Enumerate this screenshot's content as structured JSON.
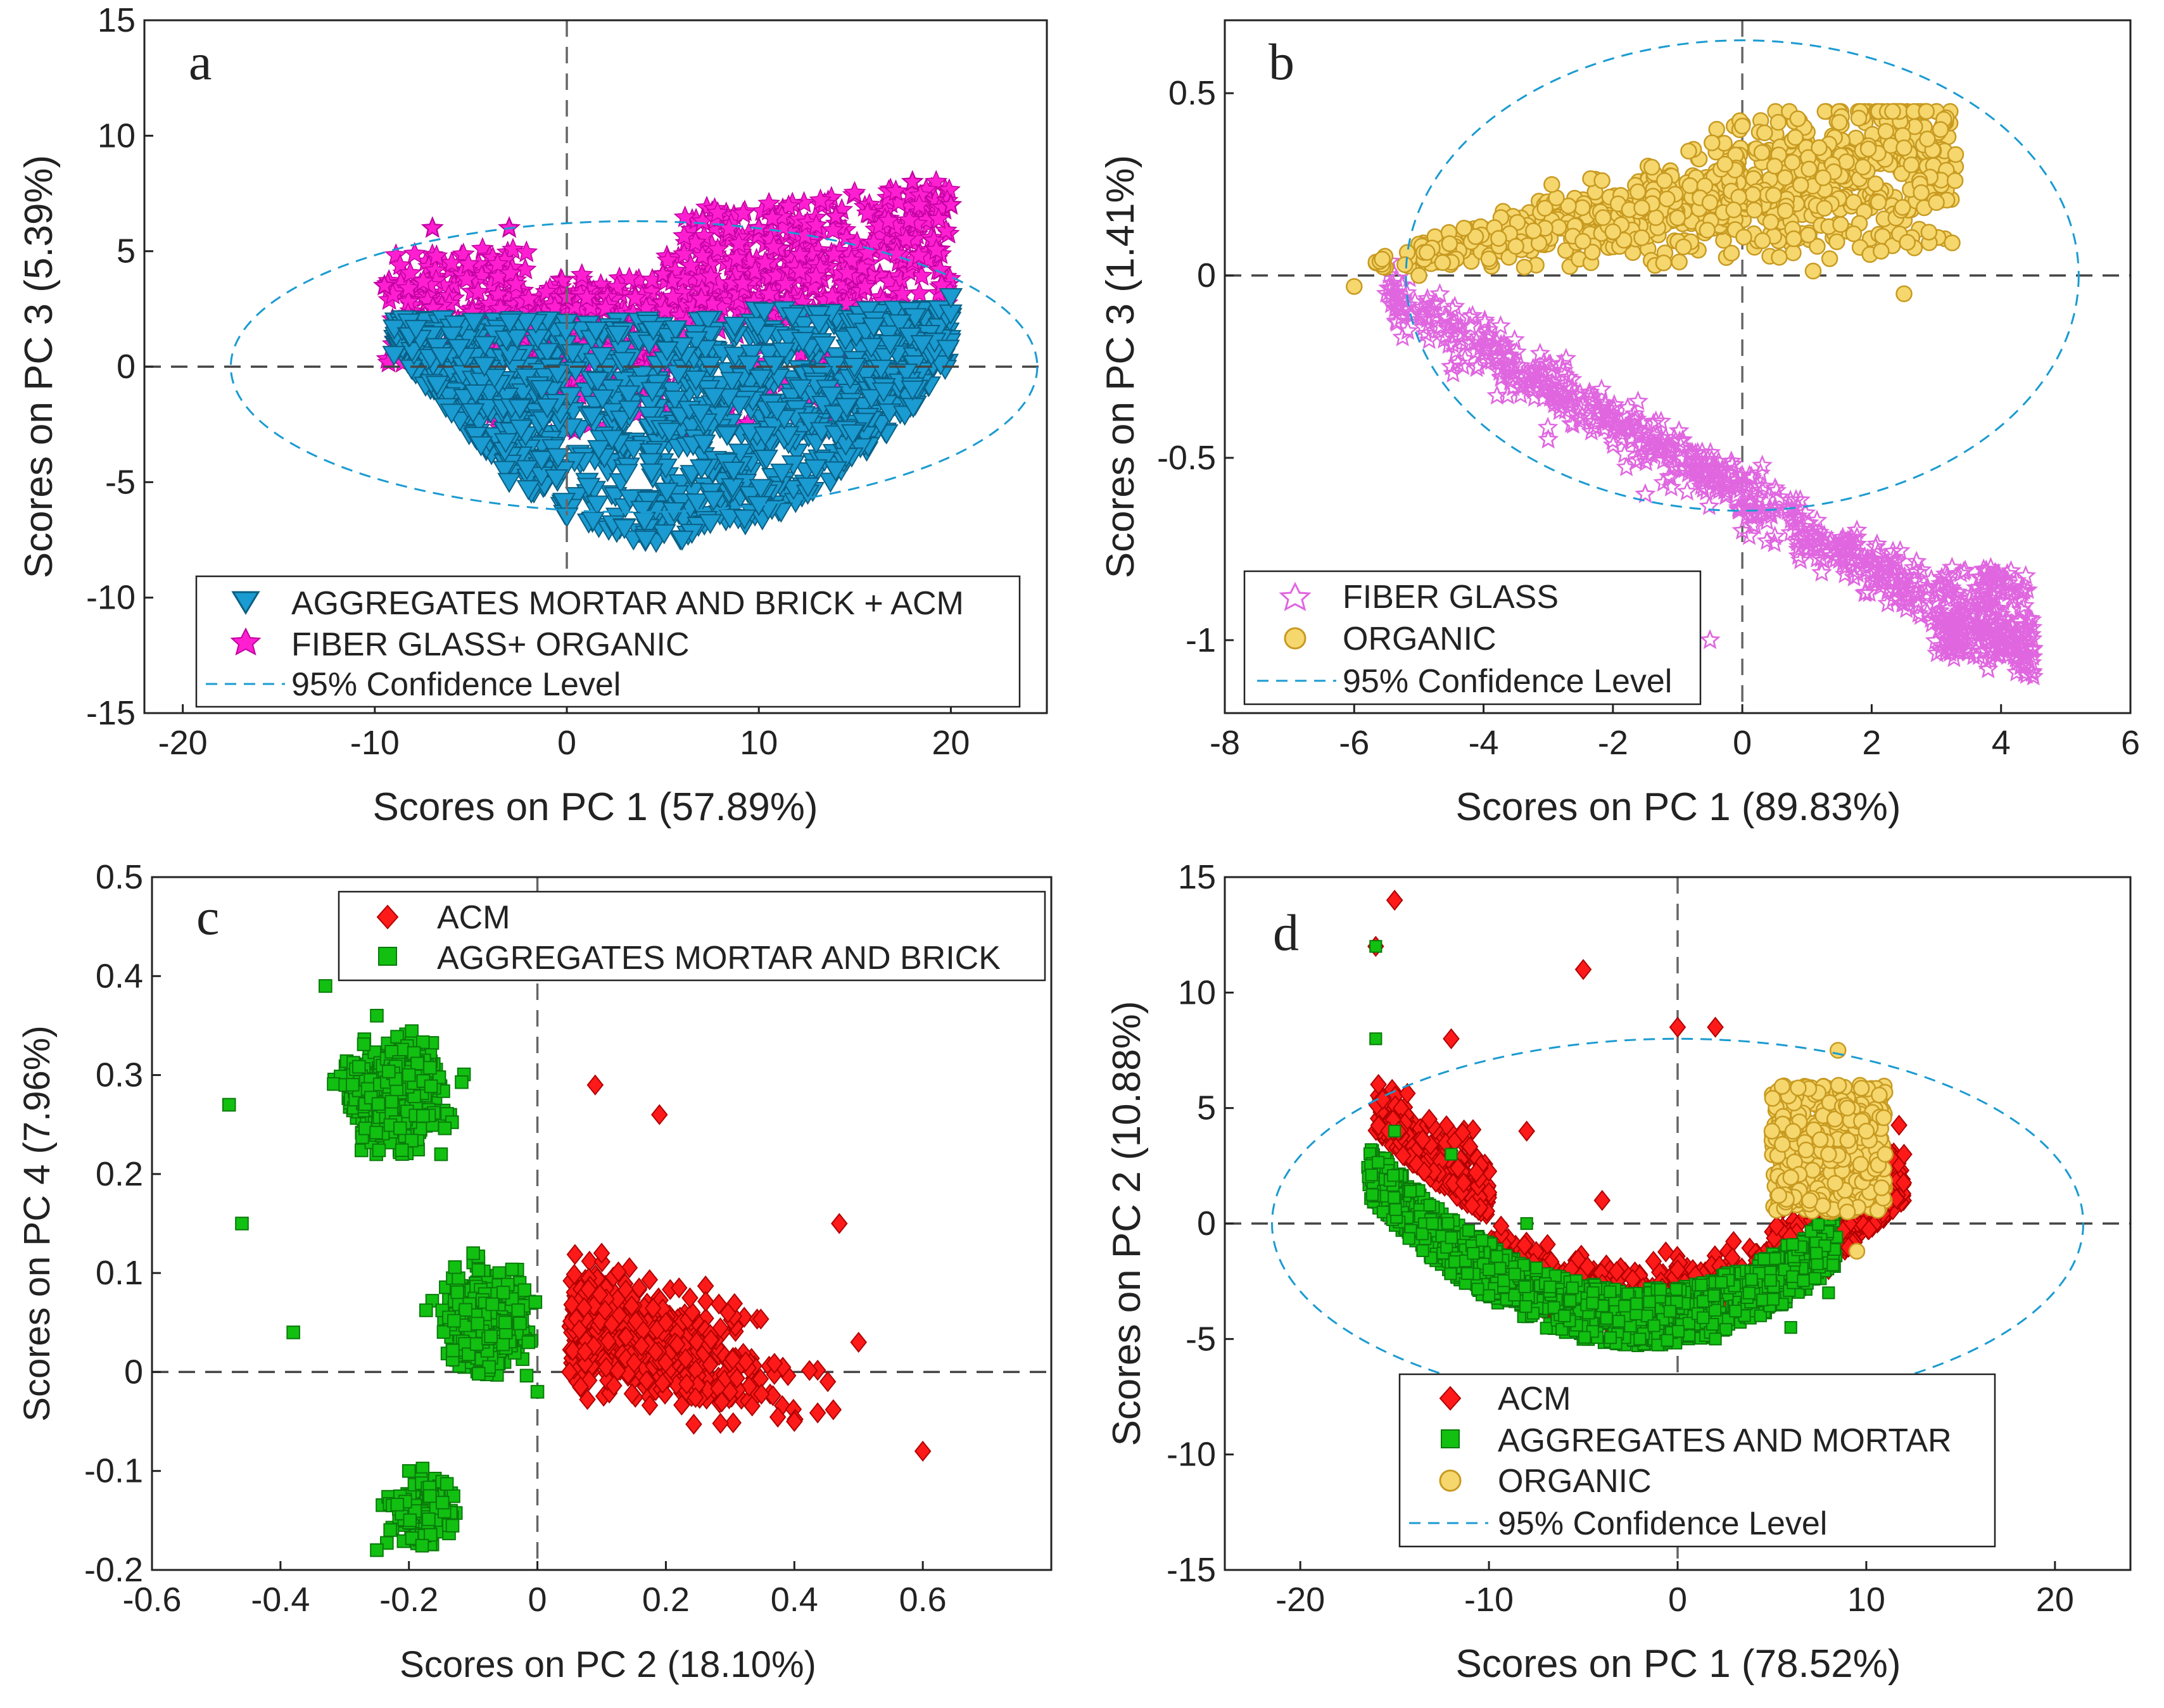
{
  "chart_data": [
    {
      "type": "scatter",
      "panel_label": "a",
      "xlabel": "Scores on PC 1 (57.89%)",
      "ylabel": "Scores on PC 3 (5.39%)",
      "xlim": [
        -22,
        25
      ],
      "ylim": [
        -15,
        15
      ],
      "xticks": [
        -20,
        -10,
        0,
        10,
        20
      ],
      "yticks": [
        -15,
        -10,
        -5,
        0,
        5,
        10,
        15
      ],
      "xtick_labels": [
        "-20",
        "-10",
        "0",
        "10",
        "20"
      ],
      "ytick_labels": [
        "-15",
        "-10",
        "-5",
        "0",
        "5",
        "10",
        "15"
      ],
      "legend_position": "bottom-center",
      "series": [
        {
          "name": "AGGREGATES MORTAR AND BRICK + ACM",
          "marker": "triangle-down",
          "color": "#1a9bd1",
          "edge": "#0b5f84",
          "x_range": [
            -9,
            20
          ],
          "approx_shape": "bowl below y=3, lowest near x=0..8 at y=-7.5",
          "representative_points": [
            [
              -9,
              0.5
            ],
            [
              -6,
              -2
            ],
            [
              -3,
              -5
            ],
            [
              0,
              -6.5
            ],
            [
              3,
              -7
            ],
            [
              6,
              -7.5
            ],
            [
              10,
              -6
            ],
            [
              14,
              -4.5
            ],
            [
              18,
              -1
            ],
            [
              20,
              3
            ]
          ]
        },
        {
          "name": "FIBER GLASS+ ORGANIC",
          "marker": "star",
          "color": "#ff1fd1",
          "edge": "#c000a0",
          "x_range": [
            -10,
            20
          ],
          "representative_points": [
            [
              -9.5,
              3.5
            ],
            [
              -7,
              6
            ],
            [
              -3,
              6
            ],
            [
              0,
              3
            ],
            [
              5,
              4
            ],
            [
              10,
              6
            ],
            [
              14,
              6.5
            ],
            [
              18,
              8
            ],
            [
              20,
              7
            ],
            [
              6,
              -2
            ],
            [
              12,
              -2
            ]
          ]
        },
        {
          "name": "95% Confidence Level",
          "type": "ellipse",
          "color": "#1a9bd1",
          "center": [
            3.5,
            0
          ],
          "semi_axes": [
            21,
            6.3
          ]
        }
      ],
      "reference_lines": {
        "x": 0,
        "y": 0
      }
    },
    {
      "type": "scatter",
      "panel_label": "b",
      "xlabel": "Scores on PC 1 (89.83%)",
      "ylabel": "Scores on PC 3 (1.41%)",
      "xlim": [
        -8,
        6
      ],
      "ylim": [
        -1.2,
        0.7
      ],
      "xticks": [
        -8,
        -6,
        -4,
        -2,
        0,
        2,
        4,
        6
      ],
      "yticks": [
        -1,
        -0.5,
        0,
        0.5
      ],
      "xtick_labels": [
        "-8",
        "-6",
        "-4",
        "-2",
        "0",
        "2",
        "4",
        "6"
      ],
      "ytick_labels": [
        "-1",
        "-0.5",
        "0",
        "0.5"
      ],
      "legend_position": "bottom-left",
      "series": [
        {
          "name": "FIBER GLASS",
          "marker": "star-open",
          "color": "#e066e0",
          "representative_points": [
            [
              -5.5,
              -0.05
            ],
            [
              -4.5,
              -0.25
            ],
            [
              -3,
              -0.45
            ],
            [
              -1.5,
              -0.6
            ],
            [
              0,
              -0.7
            ],
            [
              1.5,
              -0.78
            ],
            [
              3,
              -0.9
            ],
            [
              4.3,
              -0.95
            ],
            [
              3.8,
              -1.08
            ],
            [
              -0.5,
              -1.0
            ]
          ]
        },
        {
          "name": "ORGANIC",
          "marker": "circle",
          "color": "#f5d76e",
          "edge": "#c89a20",
          "representative_points": [
            [
              -6,
              -0.03
            ],
            [
              -5,
              0.0
            ],
            [
              -3.5,
              0.08
            ],
            [
              -2,
              0.12
            ],
            [
              -0.5,
              0.2
            ],
            [
              0.5,
              0.3
            ],
            [
              1.5,
              0.42
            ],
            [
              2.5,
              0.35
            ],
            [
              3,
              0.2
            ],
            [
              2.5,
              -0.05
            ],
            [
              0,
              0.41
            ]
          ]
        },
        {
          "name": "95% Confidence Level",
          "type": "ellipse",
          "color": "#1a9bd1",
          "center": [
            0,
            0
          ],
          "semi_axes": [
            5.2,
            0.645
          ]
        }
      ],
      "reference_lines": {
        "x": 0,
        "y": 0
      }
    },
    {
      "type": "scatter",
      "panel_label": "c",
      "xlabel": "Scores on PC 2 (18.10%)",
      "ylabel": "Scores on PC 4 (7.96%)",
      "xlim": [
        -0.6,
        0.8
      ],
      "ylim": [
        -0.2,
        0.5
      ],
      "xticks": [
        -0.6,
        -0.4,
        -0.2,
        0,
        0.2,
        0.4,
        0.6
      ],
      "yticks": [
        -0.2,
        -0.1,
        0,
        0.1,
        0.2,
        0.3,
        0.4,
        0.5
      ],
      "xtick_labels": [
        "-0.6",
        "-0.4",
        "-0.2",
        "0",
        "0.2",
        "0.4",
        "0.6"
      ],
      "ytick_labels": [
        "-0.2",
        "-0.1",
        "0",
        "0.1",
        "0.2",
        "0.3",
        "0.4",
        "0.5"
      ],
      "legend_position": "top-right",
      "series": [
        {
          "name": "ACM",
          "marker": "diamond",
          "color": "#ff1a1a",
          "edge": "#b00000",
          "representative_points": [
            [
              0.05,
              0.0
            ],
            [
              0.1,
              0.12
            ],
            [
              0.2,
              0.05
            ],
            [
              0.3,
              -0.02
            ],
            [
              0.4,
              -0.05
            ],
            [
              0.5,
              0.03
            ],
            [
              0.6,
              -0.08
            ],
            [
              0.19,
              0.26
            ],
            [
              0.09,
              0.29
            ],
            [
              0.47,
              0.15
            ]
          ]
        },
        {
          "name": "AGGREGATES MORTAR AND BRICK",
          "marker": "square",
          "color": "#12c012",
          "edge": "#0a7a0a",
          "representative_points": [
            [
              -0.33,
              0.39
            ],
            [
              -0.25,
              0.36
            ],
            [
              -0.2,
              0.3
            ],
            [
              -0.15,
              0.22
            ],
            [
              -0.1,
              0.12
            ],
            [
              -0.05,
              0.05
            ],
            [
              0.0,
              -0.02
            ],
            [
              -0.2,
              -0.1
            ],
            [
              -0.25,
              -0.18
            ],
            [
              -0.48,
              0.27
            ],
            [
              -0.46,
              0.15
            ],
            [
              -0.38,
              0.04
            ]
          ]
        }
      ],
      "reference_lines": {
        "x": 0,
        "y": 0
      }
    },
    {
      "type": "scatter",
      "panel_label": "d",
      "xlabel": "Scores on PC 1 (78.52%)",
      "ylabel": "Scores on PC 2 (10.88%)",
      "xlim": [
        -24,
        24
      ],
      "ylim": [
        -15,
        15
      ],
      "xticks": [
        -20,
        -10,
        0,
        10,
        20
      ],
      "yticks": [
        -15,
        -10,
        -5,
        0,
        5,
        10,
        15
      ],
      "xtick_labels": [
        "-20",
        "-10",
        "0",
        "10",
        "20"
      ],
      "ytick_labels": [
        "-15",
        "-10",
        "-5",
        "0",
        "5",
        "10",
        "15"
      ],
      "legend_position": "bottom-center",
      "series": [
        {
          "name": "ACM",
          "marker": "diamond",
          "color": "#ff1a1a",
          "edge": "#b00000",
          "representative_points": [
            [
              -16,
              12
            ],
            [
              -15,
              14
            ],
            [
              -12,
              8
            ],
            [
              -8,
              4
            ],
            [
              -4,
              1
            ],
            [
              0,
              -2
            ],
            [
              4,
              -3
            ],
            [
              8,
              -2
            ],
            [
              11,
              1
            ],
            [
              12,
              3
            ],
            [
              -5,
              11
            ],
            [
              0,
              8.5
            ],
            [
              2,
              8.5
            ]
          ]
        },
        {
          "name": "AGGREGATES AND MORTAR",
          "marker": "square",
          "color": "#12c012",
          "edge": "#0a7a0a",
          "representative_points": [
            [
              -16,
              12
            ],
            [
              -16,
              8
            ],
            [
              -15,
              4
            ],
            [
              -13,
              0
            ],
            [
              -10,
              -2
            ],
            [
              -6,
              -4
            ],
            [
              -2,
              -5
            ],
            [
              2,
              -5
            ],
            [
              6,
              -4.5
            ],
            [
              8,
              -3
            ],
            [
              -8,
              0
            ],
            [
              -12,
              3
            ]
          ]
        },
        {
          "name": "ORGANIC",
          "marker": "circle",
          "color": "#f5d76e",
          "edge": "#c89a20",
          "representative_points": [
            [
              5,
              4
            ],
            [
              6,
              2
            ],
            [
              7,
              1
            ],
            [
              8,
              3
            ],
            [
              9,
              5
            ],
            [
              10,
              4
            ],
            [
              8.5,
              7.5
            ],
            [
              9,
              0.5
            ],
            [
              11,
              3
            ],
            [
              9.5,
              -1.2
            ]
          ]
        },
        {
          "name": "95% Confidence Level",
          "type": "ellipse",
          "color": "#1a9bd1",
          "center": [
            0,
            0
          ],
          "semi_axes": [
            21.5,
            8
          ]
        }
      ],
      "reference_lines": {
        "x": 0,
        "y": 0
      }
    }
  ],
  "legends": {
    "a": [
      "AGGREGATES MORTAR AND BRICK + ACM",
      "FIBER GLASS+ ORGANIC",
      "95% Confidence Level"
    ],
    "b": [
      "FIBER GLASS",
      "ORGANIC",
      "95% Confidence Level"
    ],
    "c": [
      "ACM",
      "AGGREGATES MORTAR AND BRICK"
    ],
    "d": [
      "ACM",
      "AGGREGATES AND MORTAR",
      "ORGANIC",
      "95% Confidence Level"
    ]
  }
}
